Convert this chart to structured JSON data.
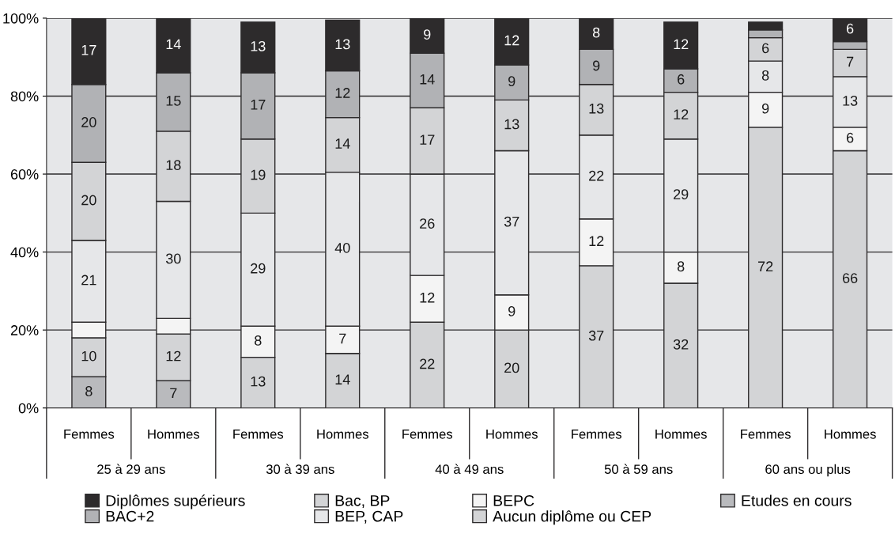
{
  "chart_data": {
    "type": "bar",
    "stacked": true,
    "categories": [
      "Femmes",
      "Hommes",
      "Femmes",
      "Hommes",
      "Femmes",
      "Hommes",
      "Femmes",
      "Hommes",
      "Femmes",
      "Hommes"
    ],
    "annotations": [
      "25 à 29 ans",
      "30 à 39 ans",
      "40 à 49 ans",
      "50 à 59 ans",
      "60 ans ou plus"
    ],
    "series": [
      {
        "name": "Etudes en cours",
        "color": "#b9babd",
        "values": [
          8,
          7,
          null,
          null,
          null,
          null,
          null,
          null,
          null,
          null
        ],
        "value_labels": [
          "8",
          "7",
          null,
          null,
          null,
          null,
          null,
          null,
          null,
          null
        ]
      },
      {
        "name": "Aucun diplôme ou CEP",
        "color": "#d3d4d6",
        "values": [
          10,
          12,
          13,
          14,
          22,
          20,
          36.5,
          32,
          72,
          66
        ],
        "value_labels": [
          "10",
          "12",
          "13",
          "14",
          "22",
          "20",
          "37",
          "32",
          "72",
          "66"
        ]
      },
      {
        "name": "BEPC",
        "color": "#f4f4f4",
        "values": [
          4,
          4,
          8,
          7,
          12,
          9,
          12,
          8,
          9,
          6
        ],
        "value_labels": [
          null,
          null,
          "8",
          "7",
          "12",
          "9",
          "12",
          "8",
          "9",
          "6"
        ]
      },
      {
        "name": "BEP, CAP",
        "color": "#e6e7e9",
        "values": [
          21,
          30,
          29,
          39.5,
          26,
          37,
          21.5,
          29,
          8,
          13
        ],
        "value_labels": [
          "21",
          "30",
          "29",
          "40",
          "26",
          "37",
          "22",
          "29",
          "8",
          "13"
        ]
      },
      {
        "name": "Bac, BP",
        "color": "#d3d4d6",
        "values": [
          20,
          18,
          19,
          14,
          17,
          13,
          13,
          12,
          6,
          7
        ],
        "value_labels": [
          "20",
          "18",
          "19",
          "14",
          "17",
          "13",
          "13",
          "12",
          "6",
          "7"
        ]
      },
      {
        "name": "BAC+2",
        "color": "#b1b2b5",
        "values": [
          20,
          15,
          17,
          12,
          14,
          9,
          9,
          6,
          2,
          2
        ],
        "value_labels": [
          "20",
          "15",
          "17",
          "12",
          "14",
          "9",
          "9",
          "6",
          null,
          null
        ]
      },
      {
        "name": "Diplômes supérieurs",
        "color": "#2d2b2c",
        "values": [
          17,
          14,
          13,
          13,
          9,
          12,
          8,
          12,
          2,
          6
        ],
        "value_labels": [
          "17",
          "14",
          "13",
          "13",
          "9",
          "12",
          "8",
          "12",
          null,
          "6"
        ]
      }
    ],
    "ylim": [
      0,
      100
    ],
    "yticks": [
      {
        "value": 0,
        "label": "0%"
      },
      {
        "value": 20,
        "label": "20%"
      },
      {
        "value": 40,
        "label": "40%"
      },
      {
        "value": 60,
        "label": "60%"
      },
      {
        "value": 80,
        "label": "80%"
      },
      {
        "value": 100,
        "label": "100%"
      }
    ],
    "grid": "y",
    "legend": "bottom"
  }
}
